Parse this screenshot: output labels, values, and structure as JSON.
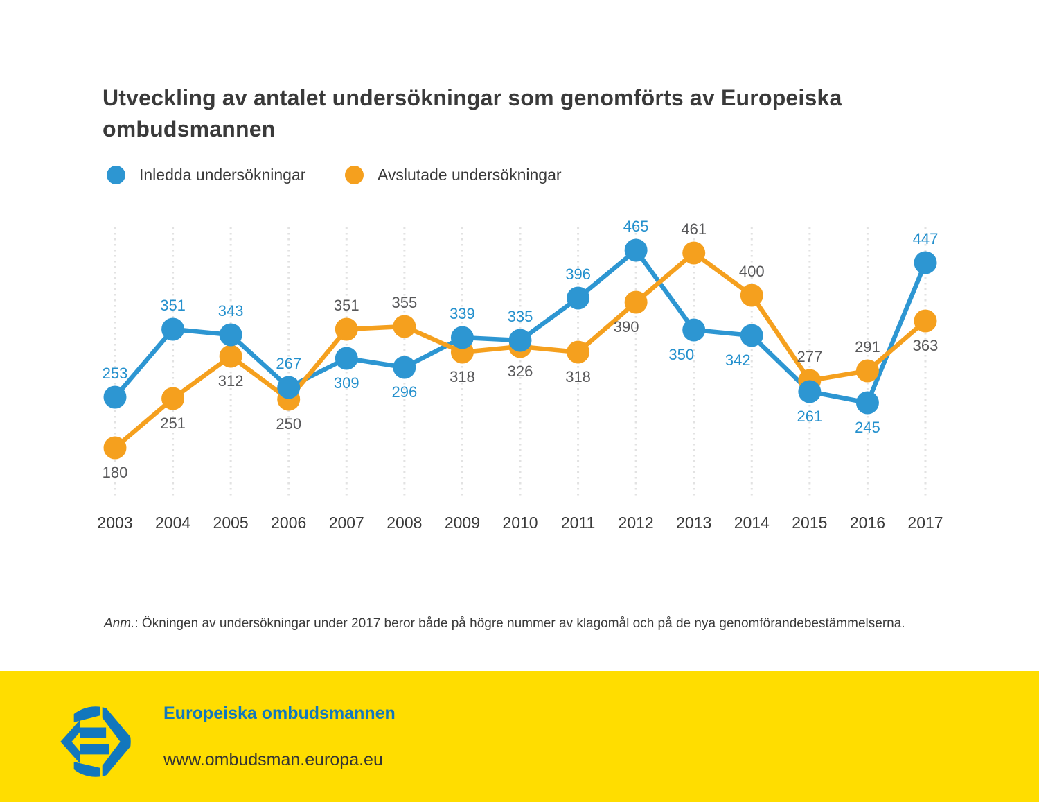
{
  "title": "Utveckling av antalet undersökningar som genomförts av Europeiska ombudsmannen",
  "note": {
    "prefix": "Anm.",
    "rest": ": Ökningen av undersökningar under 2017 beror både på högre nummer av klagomål och på de nya genomförandebestämmelserna."
  },
  "footer": {
    "org_name": "Europeiska ombudsmannen",
    "url": "www.ombudsman.europa.eu"
  },
  "colors": {
    "series_blue": "#2d96d2",
    "series_orange": "#f5a01e",
    "blue_label_text": "#2490cd",
    "gray_label_text": "#58585a",
    "year_label_text": "#3a3a3a",
    "gridline": "#e2e2e2",
    "footer_background": "#ffdd00",
    "footer_blue": "#1277bd",
    "title_text": "#3a3a3a"
  },
  "chart_data": {
    "type": "line",
    "title": "Utveckling av antalet undersökningar som genomförts av Europeiska ombudsmannen",
    "categories": [
      "2003",
      "2004",
      "2005",
      "2006",
      "2007",
      "2008",
      "2009",
      "2010",
      "2011",
      "2012",
      "2013",
      "2014",
      "2015",
      "2016",
      "2017"
    ],
    "series": [
      {
        "name": "Inledda undersökningar",
        "color": "#2d96d2",
        "label_color": "#2490cd",
        "values": [
          253,
          351,
          343,
          267,
          309,
          296,
          339,
          335,
          396,
          465,
          350,
          342,
          261,
          245,
          447
        ],
        "label_dx": [
          0,
          0,
          0,
          0,
          0,
          0,
          0,
          0,
          0,
          0,
          -18,
          -20,
          0,
          0,
          0
        ]
      },
      {
        "name": "Avslutade undersökningar",
        "color": "#f5a01e",
        "label_color": "#58585a",
        "values": [
          180,
          251,
          312,
          250,
          351,
          355,
          318,
          326,
          318,
          390,
          461,
          400,
          277,
          291,
          363
        ],
        "label_dx": [
          0,
          0,
          0,
          0,
          0,
          0,
          0,
          0,
          0,
          -14,
          0,
          0,
          0,
          0,
          0
        ]
      }
    ],
    "xlabel": "",
    "ylabel": "",
    "ylim": [
      150,
      500
    ],
    "grid": "vertical-dotted",
    "legend_position": "top-left",
    "point_labels": true
  }
}
